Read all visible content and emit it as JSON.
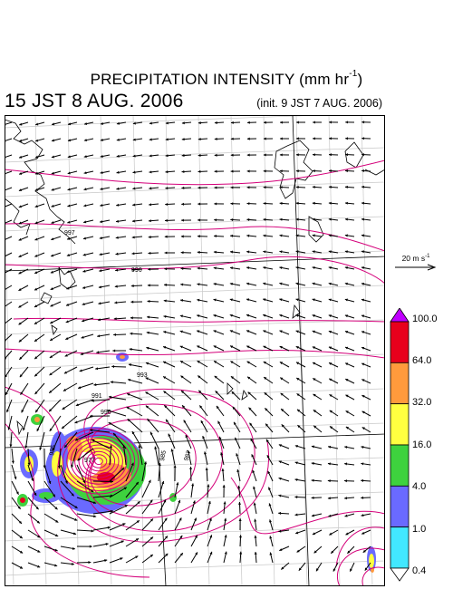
{
  "header": {
    "title_main": "PRECIPITATION INTENSITY (mm hr",
    "title_sup": "-1",
    "title_close": ")",
    "valid_time": "15 JST 8 AUG. 2006",
    "init_time": "(init. 9 JST 7 AUG. 2006)"
  },
  "reference_vector": {
    "label_main": "20 m s",
    "label_sup": "-1"
  },
  "colorbar": {
    "levels": [
      "100.0",
      "64.0",
      "32.0",
      "16.0",
      "4.0",
      "1.0",
      "0.4"
    ],
    "colors": [
      "#e8001c",
      "#ff9a3c",
      "#ffff40",
      "#3ed23e",
      "#6a6aff",
      "#42e8ff"
    ],
    "over_color": "#c000ff",
    "under_color": "#ffffff"
  },
  "map": {
    "isobar_labels": [
      "997",
      "996",
      "993",
      "991",
      "990",
      "977",
      "985",
      "987",
      "985"
    ],
    "isobar_color": "#d4007a",
    "coast_color": "#000000",
    "grid_color": "#c8c8c8"
  }
}
